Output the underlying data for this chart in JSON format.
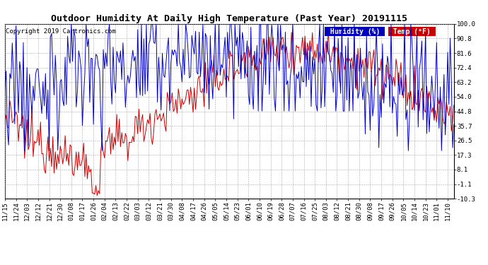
{
  "title": "Outdoor Humidity At Daily High Temperature (Past Year) 20191115",
  "copyright": "Copyright 2019 Cartronics.com",
  "legend_humidity": "Humidity (%)",
  "legend_temp": "Temp (°F)",
  "legend_humidity_bg": "#0000bb",
  "legend_temp_bg": "#cc0000",
  "humidity_color": "#0000cc",
  "temp_color": "#cc0000",
  "bg_color": "#ffffff",
  "grid_color": "#aaaaaa",
  "yticks": [
    100.0,
    90.8,
    81.6,
    72.4,
    63.2,
    54.0,
    44.8,
    35.7,
    26.5,
    17.3,
    8.1,
    -1.1,
    -10.3
  ],
  "ylim": [
    -10.3,
    100.0
  ],
  "title_fontsize": 9.5,
  "tick_fontsize": 6.5,
  "copyright_fontsize": 6.5,
  "legend_fontsize": 7.0,
  "figsize": [
    6.9,
    3.75
  ],
  "dpi": 100
}
